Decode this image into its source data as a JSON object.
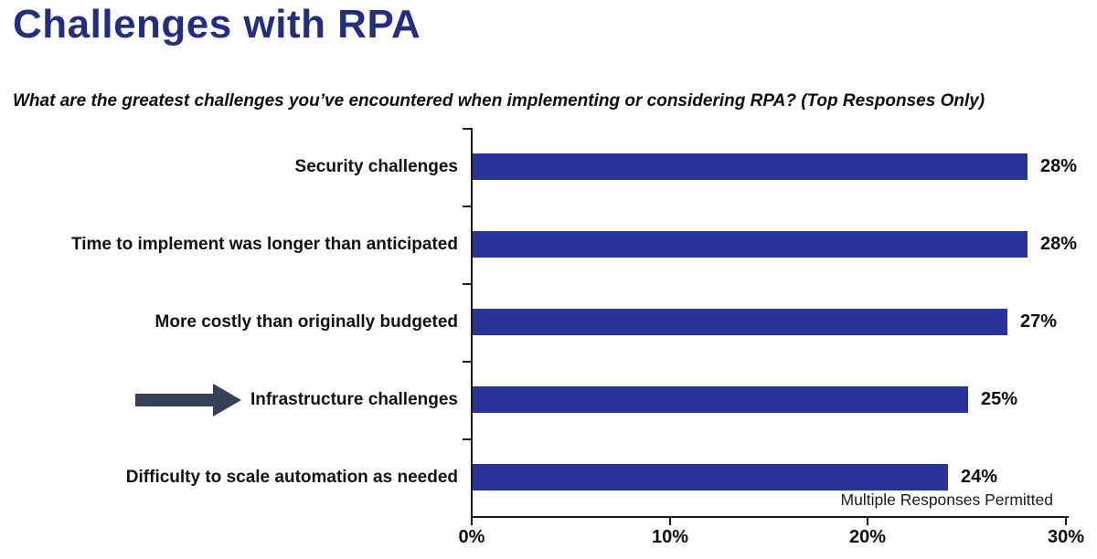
{
  "page": {
    "title": "Challenges with RPA",
    "subtitle": "What are the greatest challenges you’ve encountered when implementing or considering RPA? (Top Responses Only)",
    "footnote": "Multiple Responses Permitted"
  },
  "colors": {
    "title_text": "#242e7a",
    "bar_fill": "#293399",
    "arrow_fill": "#364157",
    "axis_line": "#1a1a1a",
    "label_text": "#111111"
  },
  "chart_data": {
    "type": "bar",
    "orientation": "horizontal",
    "title": "Challenges with RPA",
    "question": "What are the greatest challenges you’ve encountered when implementing or considering RPA? (Top Responses Only)",
    "categories": [
      "Security challenges",
      "Time to implement was longer than anticipated",
      "More costly than originally budgeted",
      "Infrastructure challenges",
      "Difficulty to scale automation as needed"
    ],
    "values": [
      28,
      28,
      27,
      25,
      24
    ],
    "value_labels": [
      "28%",
      "28%",
      "27%",
      "25%",
      "24%"
    ],
    "xlabel": "",
    "ylabel": "",
    "xlim": [
      0,
      30
    ],
    "x_ticks": [
      "0%",
      "10%",
      "20%",
      "30%"
    ],
    "x_tick_values": [
      0,
      10,
      20,
      30
    ],
    "grid": false,
    "legend": null,
    "annotations": [
      {
        "type": "arrow-pointer",
        "target_category_index": 3
      },
      {
        "type": "note",
        "text": "Multiple Responses Permitted",
        "position": "bottom-right"
      }
    ]
  }
}
